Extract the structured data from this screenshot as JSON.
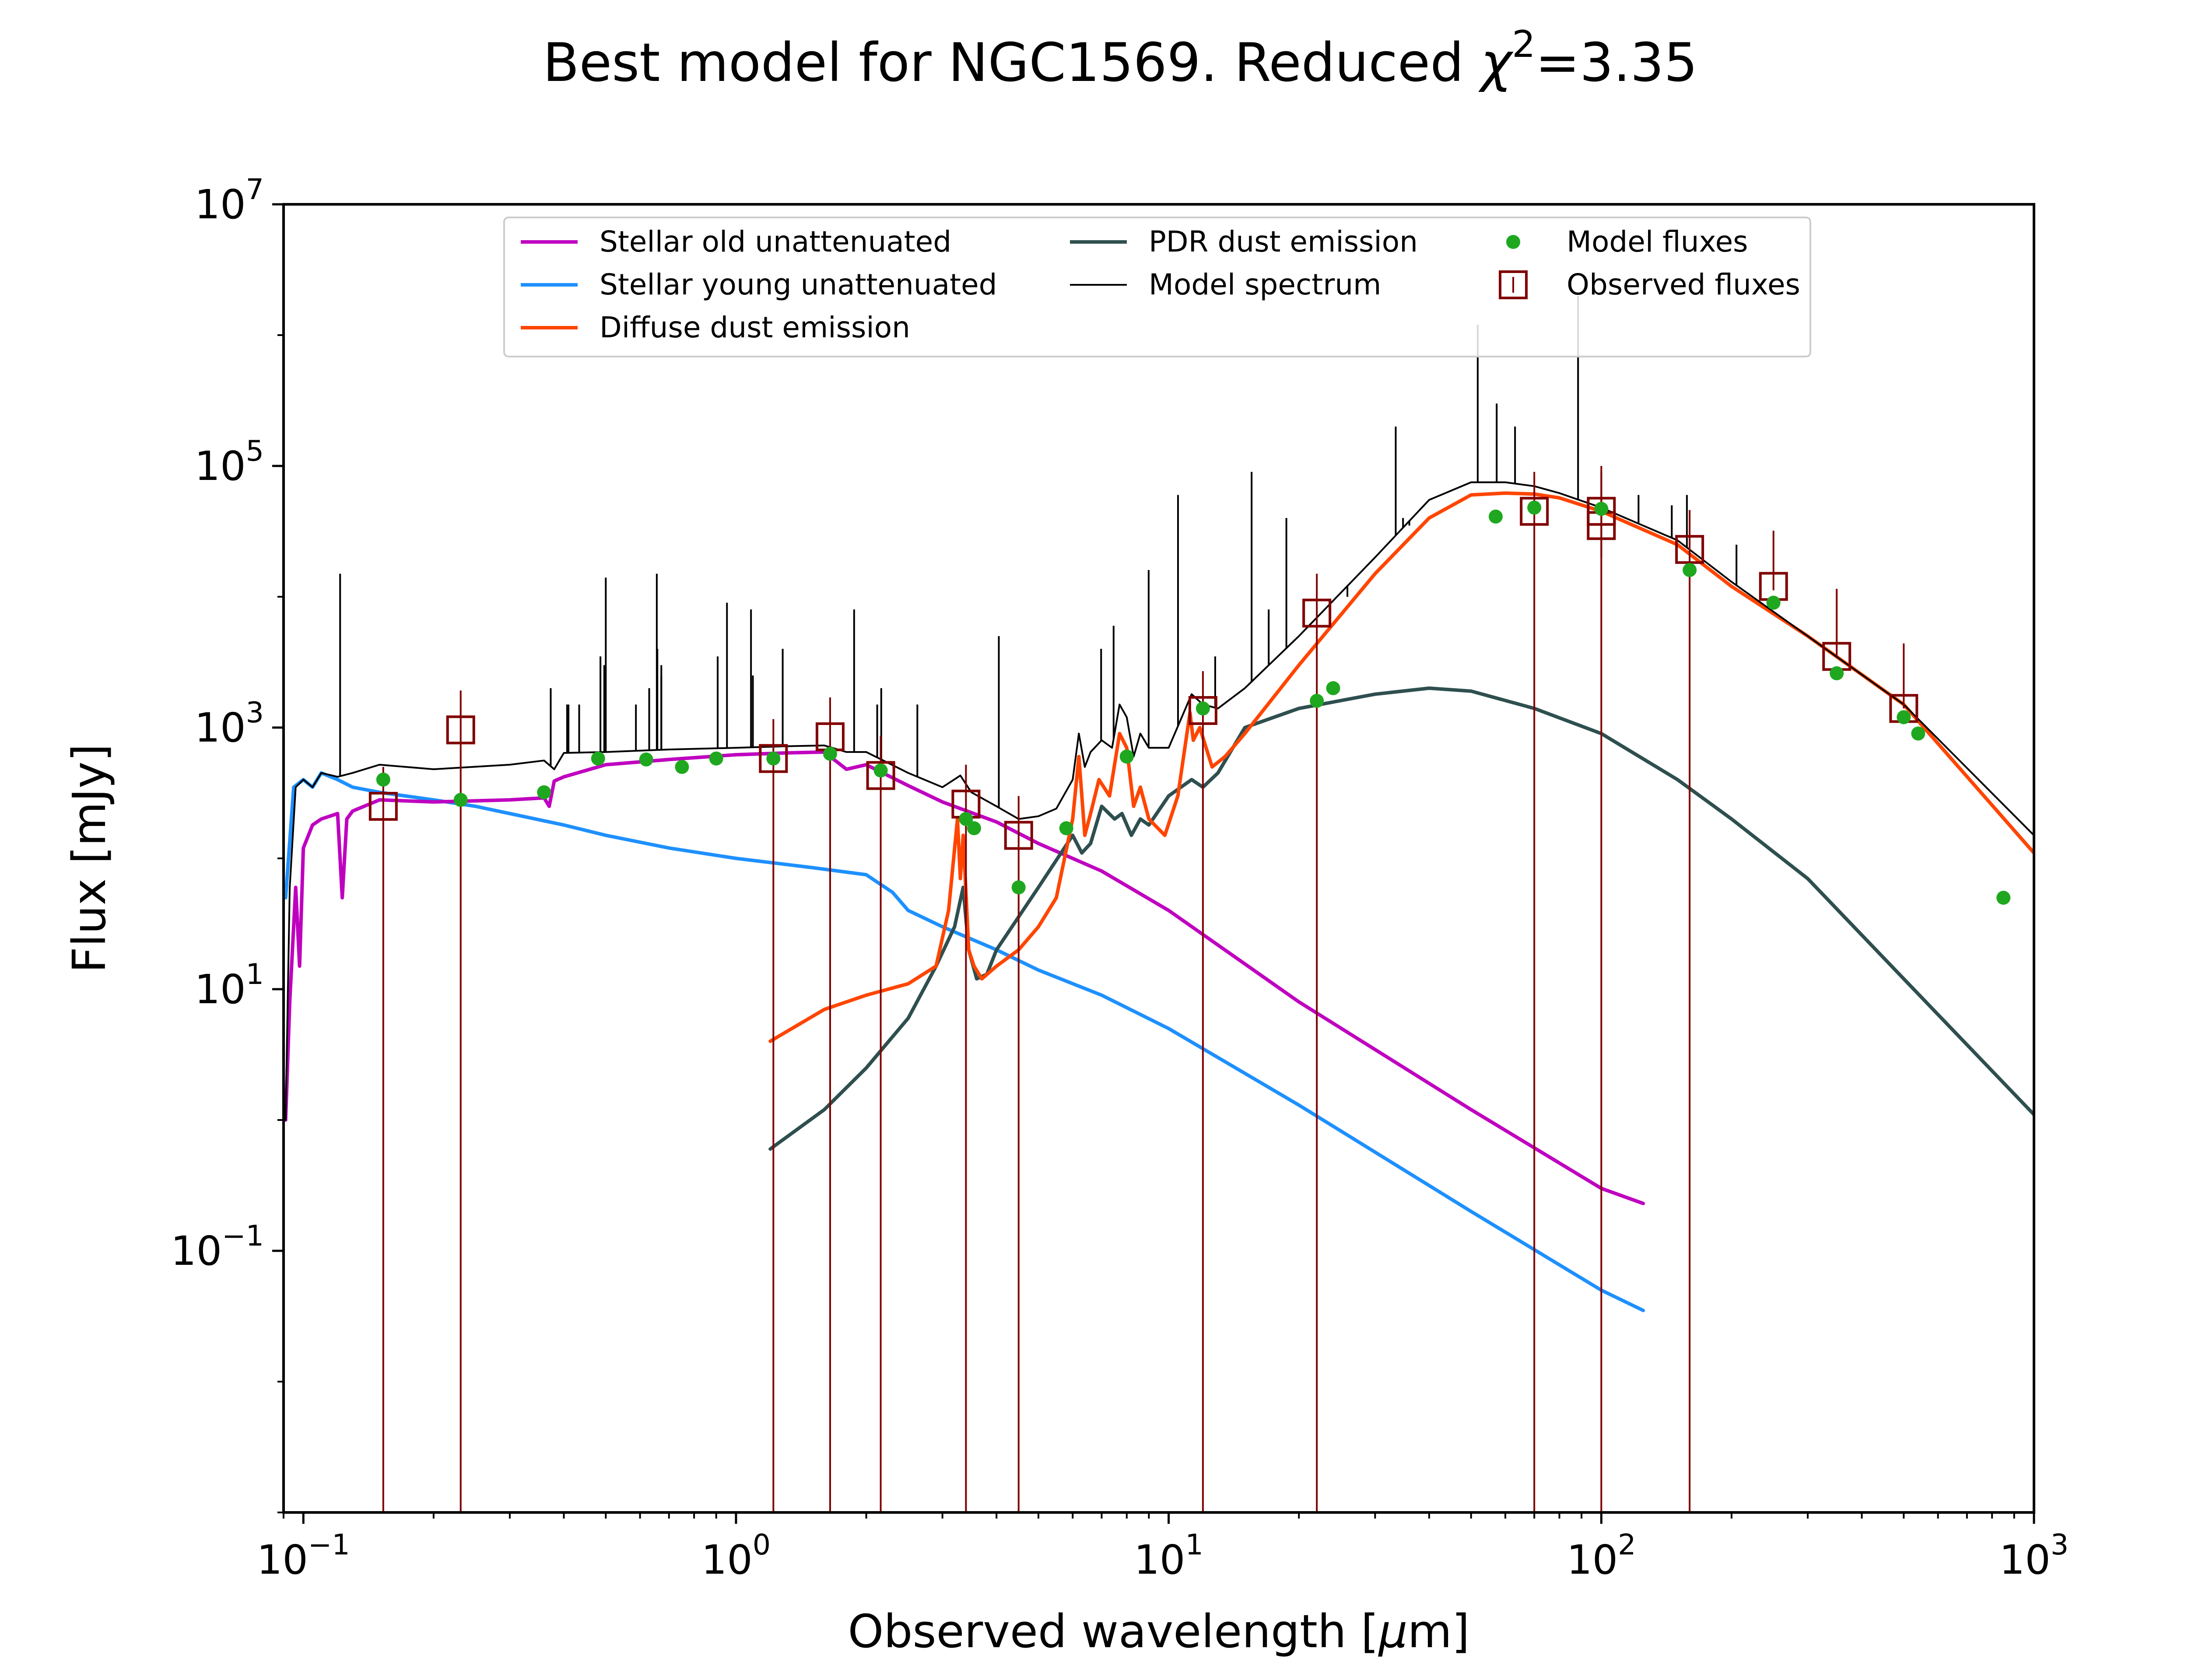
{
  "chart_data": {
    "type": "line",
    "title_prefix": "Best model for NGC1569. Reduced ",
    "title_chi": "χ",
    "title_chi_power": "2",
    "title_suffix": "=3.35",
    "xlabel_prefix": "Observed wavelength [",
    "xlabel_mu": "μ",
    "xlabel_suffix": "m]",
    "ylabel": "Flux [mJy]",
    "xscale": "log",
    "yscale": "log",
    "xlim": [
      0.09,
      1000
    ],
    "ylim": [
      0.001,
      10000000
    ],
    "grid": false,
    "legend_position": "top-center",
    "x_ticks": [
      {
        "base": "10",
        "exp": "−1",
        "value": 0.1
      },
      {
        "base": "10",
        "exp": "0",
        "value": 1
      },
      {
        "base": "10",
        "exp": "1",
        "value": 10
      },
      {
        "base": "10",
        "exp": "2",
        "value": 100
      },
      {
        "base": "10",
        "exp": "3",
        "value": 1000
      }
    ],
    "y_ticks": [
      {
        "base": "10",
        "exp": "−1",
        "value": 0.1
      },
      {
        "base": "10",
        "exp": "1",
        "value": 10
      },
      {
        "base": "10",
        "exp": "3",
        "value": 1000
      },
      {
        "base": "10",
        "exp": "5",
        "value": 100000
      },
      {
        "base": "10",
        "exp": "7",
        "value": 10000000
      }
    ],
    "series": [
      {
        "name": "Stellar old unattenuated",
        "color": "#bf00bf",
        "kind": "line",
        "x": [
          0.091,
          0.093,
          0.096,
          0.098,
          0.1,
          0.105,
          0.11,
          0.12,
          0.123,
          0.126,
          0.13,
          0.15,
          0.2,
          0.3,
          0.36,
          0.37,
          0.38,
          0.4,
          0.5,
          0.7,
          1.0,
          1.3,
          1.6,
          1.8,
          2.0,
          2.5,
          3.0,
          4.0,
          5.0,
          7.0,
          10,
          20,
          50,
          100,
          125
        ],
        "y": [
          1.0,
          8,
          60,
          15,
          120,
          180,
          200,
          220,
          50,
          200,
          230,
          280,
          270,
          280,
          290,
          250,
          390,
          420,
          520,
          570,
          620,
          640,
          650,
          480,
          520,
          360,
          270,
          190,
          130,
          80,
          40,
          8,
          1.2,
          0.3,
          0.23
        ]
      },
      {
        "name": "Stellar young unattenuated",
        "color": "#1e90ff",
        "kind": "line",
        "x": [
          0.091,
          0.095,
          0.1,
          0.105,
          0.11,
          0.12,
          0.13,
          0.15,
          0.2,
          0.25,
          0.3,
          0.4,
          0.5,
          0.7,
          1.0,
          1.5,
          2.0,
          2.3,
          2.5,
          3.0,
          4.0,
          5.0,
          7.0,
          10,
          20,
          50,
          100,
          125
        ],
        "y": [
          50,
          350,
          400,
          350,
          450,
          400,
          350,
          320,
          280,
          250,
          220,
          180,
          150,
          120,
          100,
          85,
          75,
          55,
          40,
          30,
          20,
          14,
          9,
          5,
          1.3,
          0.2,
          0.05,
          0.035
        ]
      },
      {
        "name": "Diffuse dust emission",
        "color": "#ff4500",
        "kind": "line",
        "x": [
          1.2,
          1.6,
          2.0,
          2.5,
          2.9,
          3.1,
          3.25,
          3.3,
          3.35,
          3.45,
          3.55,
          3.7,
          4.0,
          4.5,
          5.0,
          5.5,
          6.0,
          6.2,
          6.4,
          6.6,
          6.9,
          7.3,
          7.7,
          8.0,
          8.3,
          8.6,
          9.0,
          9.8,
          10.5,
          11.2,
          11.4,
          11.8,
          12.6,
          13.5,
          15,
          20,
          30,
          40,
          50,
          60,
          70,
          80,
          100,
          150,
          200,
          300,
          500,
          1000
        ],
        "y": [
          4,
          7,
          9,
          11,
          15,
          40,
          200,
          70,
          150,
          20,
          15,
          12,
          15,
          20,
          30,
          50,
          200,
          600,
          150,
          220,
          400,
          300,
          900,
          700,
          250,
          350,
          200,
          150,
          300,
          1300,
          800,
          1000,
          500,
          600,
          900,
          3000,
          15000,
          40000,
          60000,
          62000,
          61000,
          57000,
          45000,
          25000,
          12000,
          5000,
          1500,
          110
        ]
      },
      {
        "name": "PDR dust emission",
        "color": "#2f4f4f",
        "kind": "line",
        "x": [
          1.2,
          1.6,
          2.0,
          2.5,
          2.9,
          3.2,
          3.35,
          3.45,
          3.6,
          3.8,
          4.0,
          5.0,
          6.0,
          6.3,
          6.6,
          7.0,
          7.5,
          7.8,
          8.2,
          8.6,
          9.0,
          10,
          11.3,
          12,
          13,
          15,
          20,
          30,
          40,
          50,
          70,
          100,
          150,
          200,
          300,
          500,
          1000
        ],
        "y": [
          0.6,
          1.2,
          2.5,
          6,
          15,
          30,
          60,
          20,
          12,
          13,
          20,
          60,
          150,
          110,
          130,
          250,
          200,
          220,
          150,
          200,
          180,
          300,
          400,
          350,
          450,
          1000,
          1400,
          1800,
          2000,
          1900,
          1400,
          900,
          400,
          200,
          70,
          12,
          1.1
        ]
      },
      {
        "name": "Model spectrum",
        "color": "#000000",
        "kind": "line",
        "x": [
          0.091,
          0.093,
          0.096,
          0.1,
          0.105,
          0.11,
          0.12,
          0.13,
          0.15,
          0.2,
          0.3,
          0.36,
          0.38,
          0.4,
          0.5,
          0.7,
          1.0,
          1.3,
          1.6,
          1.8,
          2.0,
          2.5,
          3.0,
          3.3,
          3.5,
          4.0,
          4.5,
          5.0,
          5.5,
          6.0,
          6.2,
          6.4,
          6.6,
          7.0,
          7.4,
          7.7,
          8.0,
          8.3,
          8.6,
          9.0,
          10,
          11.3,
          12,
          13,
          15,
          20,
          30,
          40,
          50,
          60,
          70,
          80,
          100,
          150,
          200,
          300,
          500,
          1000
        ],
        "y": [
          1.0,
          60,
          350,
          400,
          350,
          450,
          420,
          450,
          520,
          480,
          520,
          560,
          480,
          640,
          650,
          680,
          700,
          720,
          730,
          650,
          650,
          450,
          350,
          430,
          320,
          250,
          200,
          210,
          240,
          400,
          900,
          500,
          650,
          800,
          700,
          1500,
          1200,
          600,
          900,
          700,
          700,
          1800,
          1500,
          1400,
          2000,
          5000,
          20000,
          55000,
          75000,
          75000,
          70000,
          62000,
          48000,
          27000,
          13000,
          5000,
          1500,
          150
        ]
      },
      {
        "name": "Model fluxes",
        "color": "#1fa81f",
        "kind": "scatter",
        "x": [
          0.153,
          0.231,
          0.36,
          0.48,
          0.62,
          0.75,
          0.9,
          1.22,
          1.65,
          2.16,
          3.4,
          3.55,
          4.5,
          5.8,
          8.0,
          12.0,
          22.0,
          24.0,
          57.0,
          70.0,
          100.0,
          160.0,
          250.0,
          350.0,
          500.0,
          540.0,
          850.0
        ],
        "y": [
          400,
          280,
          320,
          580,
          570,
          500,
          580,
          580,
          630,
          470,
          200,
          170,
          60,
          170,
          600,
          1400,
          1600,
          2000,
          41000,
          48000,
          47000,
          16000,
          9000,
          2600,
          1200,
          900,
          50
        ]
      },
      {
        "name": "Observed fluxes",
        "color": "#800000",
        "kind": "errorbar",
        "x": [
          0.153,
          0.231,
          1.22,
          1.65,
          2.16,
          3.4,
          4.5,
          12.0,
          22.0,
          70.0,
          100.0,
          100.0,
          160.0,
          250.0,
          350.0,
          500.0
        ],
        "y": [
          250,
          960,
          580,
          850,
          430,
          260,
          150,
          1350,
          7500,
          45000,
          35000,
          45000,
          23000,
          12000,
          3500,
          1400
        ],
        "err_low": [
          250,
          960,
          580,
          850,
          430,
          260,
          150,
          1350,
          7500,
          45000,
          15000,
          45000,
          23000,
          800,
          0.001,
          0.001
        ],
        "err_high": [
          250,
          960,
          580,
          850,
          430,
          260,
          150,
          1350,
          7500,
          45000,
          65000,
          45000,
          23000,
          20000,
          8000,
          3000
        ]
      }
    ],
    "emission_lines": [
      {
        "x": 0.1216,
        "y": 15000
      },
      {
        "x": 0.373,
        "y": 2000
      },
      {
        "x": 0.407,
        "y": 1500
      },
      {
        "x": 0.41,
        "y": 1500
      },
      {
        "x": 0.434,
        "y": 1500
      },
      {
        "x": 0.486,
        "y": 3500
      },
      {
        "x": 0.496,
        "y": 3000
      },
      {
        "x": 0.5,
        "y": 14000
      },
      {
        "x": 0.587,
        "y": 1500
      },
      {
        "x": 0.63,
        "y": 2000
      },
      {
        "x": 0.656,
        "y": 15000
      },
      {
        "x": 0.658,
        "y": 4000
      },
      {
        "x": 0.672,
        "y": 2500
      },
      {
        "x": 0.672,
        "y": 3000
      },
      {
        "x": 0.907,
        "y": 3500
      },
      {
        "x": 0.953,
        "y": 9000
      },
      {
        "x": 1.083,
        "y": 8000
      },
      {
        "x": 1.094,
        "y": 2500
      },
      {
        "x": 1.282,
        "y": 4000
      },
      {
        "x": 1.875,
        "y": 8000
      },
      {
        "x": 2.12,
        "y": 1500
      },
      {
        "x": 2.166,
        "y": 2000
      },
      {
        "x": 2.625,
        "y": 1500
      },
      {
        "x": 4.05,
        "y": 5000
      },
      {
        "x": 6.98,
        "y": 4000
      },
      {
        "x": 7.46,
        "y": 6000
      },
      {
        "x": 8.99,
        "y": 16000
      },
      {
        "x": 10.51,
        "y": 60000
      },
      {
        "x": 12.81,
        "y": 3500
      },
      {
        "x": 15.55,
        "y": 90000
      },
      {
        "x": 17.03,
        "y": 8000
      },
      {
        "x": 18.71,
        "y": 40000
      },
      {
        "x": 25.89,
        "y": 10000
      },
      {
        "x": 33.48,
        "y": 200000
      },
      {
        "x": 34.81,
        "y": 40000
      },
      {
        "x": 36.0,
        "y": 35000
      },
      {
        "x": 51.8,
        "y": 1200000
      },
      {
        "x": 57.3,
        "y": 300000
      },
      {
        "x": 63.18,
        "y": 200000
      },
      {
        "x": 88.36,
        "y": 2000000
      },
      {
        "x": 121.9,
        "y": 60000
      },
      {
        "x": 145.5,
        "y": 50000
      },
      {
        "x": 157.7,
        "y": 60000
      },
      {
        "x": 205.3,
        "y": 25000
      }
    ]
  }
}
